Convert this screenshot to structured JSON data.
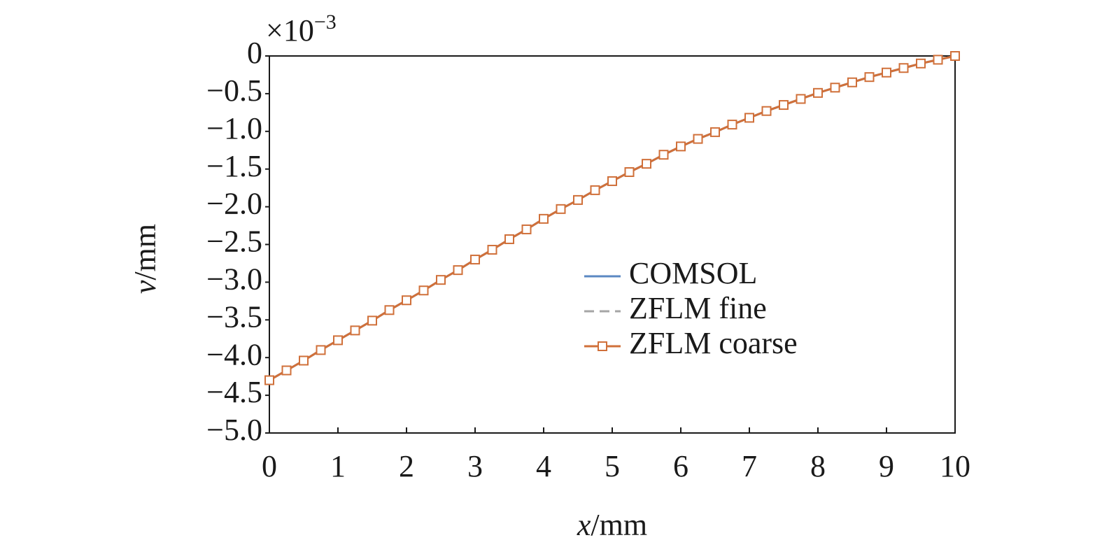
{
  "chart_data": {
    "type": "line",
    "multiplier": {
      "base": "×10",
      "exponent": "−3"
    },
    "x_label": {
      "variable": "x",
      "unit": "/mm"
    },
    "y_label": {
      "variable": "v",
      "unit": "/mm"
    },
    "xlim": [
      0,
      10
    ],
    "ylim": [
      -5,
      0
    ],
    "xticks": [
      0,
      1,
      2,
      3,
      4,
      5,
      6,
      7,
      8,
      9,
      10
    ],
    "yticks": [
      0,
      {
        "value": -0.5,
        "label": "−0.5"
      },
      {
        "value": -1.0,
        "label": "−1.0"
      },
      {
        "value": -1.5,
        "label": "−1.5"
      },
      {
        "value": -2.0,
        "label": "−2.0"
      },
      {
        "value": -2.5,
        "label": "−2.5"
      },
      {
        "value": -3.0,
        "label": "−3.0"
      },
      {
        "value": -3.5,
        "label": "−3.5"
      },
      {
        "value": -4.0,
        "label": "−4.0"
      },
      {
        "value": -4.5,
        "label": "−4.5"
      },
      {
        "value": -5.0,
        "label": "−5.0"
      }
    ],
    "grid": false,
    "legend": "center-right",
    "x": [
      0,
      0.25,
      0.5,
      0.75,
      1,
      1.25,
      1.5,
      1.75,
      2,
      2.25,
      2.5,
      2.75,
      3,
      3.25,
      3.5,
      3.75,
      4,
      4.25,
      4.5,
      4.75,
      5,
      5.25,
      5.5,
      5.75,
      6,
      6.25,
      6.5,
      6.75,
      7,
      7.25,
      7.5,
      7.75,
      8,
      8.25,
      8.5,
      8.75,
      9,
      9.25,
      9.5,
      9.75,
      10
    ],
    "series": [
      {
        "name": "COMSOL",
        "color": "#5b88c2",
        "style": "solid",
        "marker": "none",
        "values": [
          -4.3,
          -4.17,
          -4.04,
          -3.9,
          -3.77,
          -3.64,
          -3.51,
          -3.37,
          -3.24,
          -3.11,
          -2.97,
          -2.84,
          -2.7,
          -2.57,
          -2.43,
          -2.3,
          -2.16,
          -2.03,
          -1.91,
          -1.78,
          -1.66,
          -1.54,
          -1.43,
          -1.31,
          -1.2,
          -1.1,
          -1.01,
          -0.91,
          -0.82,
          -0.73,
          -0.65,
          -0.57,
          -0.49,
          -0.42,
          -0.35,
          -0.28,
          -0.22,
          -0.16,
          -0.1,
          -0.05,
          0
        ]
      },
      {
        "name": "ZFLM fine",
        "color": "#a6a6a6",
        "style": "dashed",
        "marker": "none",
        "values": [
          -4.3,
          -4.17,
          -4.04,
          -3.9,
          -3.77,
          -3.64,
          -3.51,
          -3.37,
          -3.24,
          -3.11,
          -2.97,
          -2.84,
          -2.7,
          -2.57,
          -2.43,
          -2.3,
          -2.16,
          -2.03,
          -1.91,
          -1.78,
          -1.66,
          -1.54,
          -1.43,
          -1.31,
          -1.2,
          -1.1,
          -1.01,
          -0.91,
          -0.82,
          -0.73,
          -0.65,
          -0.57,
          -0.49,
          -0.42,
          -0.35,
          -0.28,
          -0.22,
          -0.16,
          -0.1,
          -0.05,
          0
        ]
      },
      {
        "name": "ZFLM coarse",
        "color": "#d0703a",
        "style": "solid",
        "marker": "square",
        "values": [
          -4.3,
          -4.17,
          -4.04,
          -3.9,
          -3.77,
          -3.64,
          -3.51,
          -3.37,
          -3.24,
          -3.11,
          -2.97,
          -2.84,
          -2.7,
          -2.57,
          -2.43,
          -2.3,
          -2.16,
          -2.03,
          -1.91,
          -1.78,
          -1.66,
          -1.54,
          -1.43,
          -1.31,
          -1.2,
          -1.1,
          -1.01,
          -0.91,
          -0.82,
          -0.73,
          -0.65,
          -0.57,
          -0.49,
          -0.42,
          -0.35,
          -0.28,
          -0.22,
          -0.16,
          -0.1,
          -0.05,
          0
        ]
      }
    ]
  }
}
